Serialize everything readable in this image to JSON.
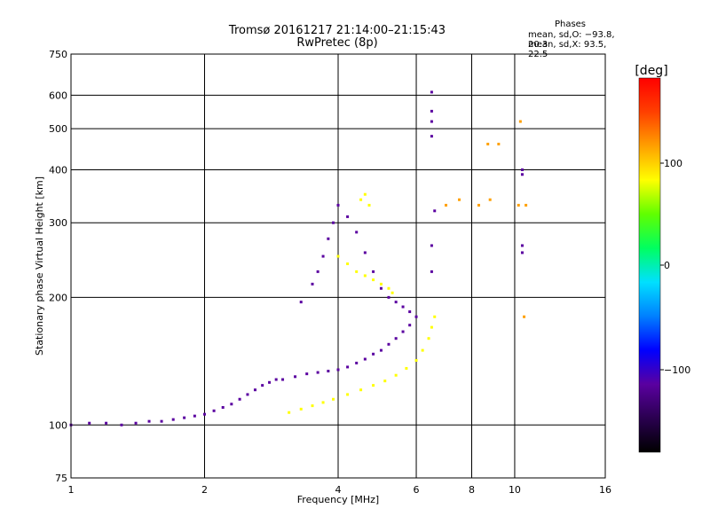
{
  "header": {
    "title": "Tromsø 20161217 21:14:00–21:15:43",
    "subtitle": "RwPretec (8p)",
    "stats_title": "Phases",
    "stats_o": "mean, sd,O: −93.8, 20.3",
    "stats_x": "mean, sd,X:  93.5, 22.5"
  },
  "colorbar": {
    "label": "[deg]",
    "ticks": [
      "100",
      "0",
      "−100"
    ],
    "min": -180,
    "max": 180,
    "colors": [
      "#000000",
      "#2a0050",
      "#5a00a0",
      "#0000ff",
      "#0080ff",
      "#00e0ff",
      "#00ff60",
      "#60ff00",
      "#ffff00",
      "#ffa000",
      "#ff4000",
      "#ff0000"
    ]
  },
  "chart_data": {
    "type": "scatter",
    "xlabel": "Frequency [MHz]",
    "ylabel": "Stationary phase Virtual Height [km]",
    "x_scale": "log",
    "y_scale": "log",
    "xlim": [
      1,
      16
    ],
    "ylim": [
      75,
      750
    ],
    "xticks": [
      1,
      2,
      4,
      6,
      8,
      10,
      16
    ],
    "xtick_labels": [
      "1",
      "2",
      "4",
      "6",
      "8",
      "10",
      "16"
    ],
    "yticks": [
      75,
      100,
      200,
      300,
      400,
      500,
      600,
      750
    ],
    "ytick_labels": [
      "75",
      "100",
      "200",
      "300",
      "400",
      "500",
      "600",
      "750"
    ],
    "grid": true,
    "color_quantity": "phase [deg]",
    "clusters": [
      {
        "trace": "low-band",
        "phase": -110,
        "points": [
          [
            1.0,
            100
          ],
          [
            1.1,
            101
          ],
          [
            1.2,
            101
          ],
          [
            1.3,
            100
          ],
          [
            1.4,
            101
          ],
          [
            1.5,
            102
          ],
          [
            1.6,
            102
          ],
          [
            1.7,
            103
          ],
          [
            1.8,
            104
          ],
          [
            1.9,
            105
          ],
          [
            2.0,
            106
          ],
          [
            2.1,
            108
          ],
          [
            2.2,
            110
          ],
          [
            2.3,
            112
          ],
          [
            2.4,
            115
          ],
          [
            2.5,
            118
          ],
          [
            2.6,
            121
          ],
          [
            2.7,
            124
          ],
          [
            2.8,
            126
          ],
          [
            2.9,
            128
          ]
        ]
      },
      {
        "trace": "e-layer-o",
        "phase": -100,
        "points": [
          [
            3.0,
            128
          ],
          [
            3.2,
            130
          ],
          [
            3.4,
            132
          ],
          [
            3.6,
            133
          ],
          [
            3.8,
            134
          ],
          [
            4.0,
            135
          ],
          [
            4.2,
            137
          ],
          [
            4.4,
            140
          ],
          [
            4.6,
            143
          ],
          [
            4.8,
            147
          ],
          [
            5.0,
            150
          ],
          [
            5.2,
            155
          ],
          [
            5.4,
            160
          ],
          [
            5.6,
            166
          ],
          [
            5.8,
            172
          ]
        ]
      },
      {
        "trace": "f-layer-o",
        "phase": -110,
        "points": [
          [
            3.3,
            195
          ],
          [
            3.5,
            215
          ],
          [
            3.6,
            230
          ],
          [
            3.7,
            250
          ],
          [
            3.8,
            275
          ],
          [
            3.9,
            300
          ],
          [
            4.0,
            330
          ],
          [
            4.2,
            310
          ],
          [
            4.4,
            285
          ],
          [
            4.6,
            255
          ],
          [
            4.8,
            230
          ],
          [
            5.0,
            210
          ],
          [
            5.2,
            200
          ],
          [
            5.4,
            195
          ],
          [
            5.6,
            190
          ],
          [
            5.8,
            185
          ],
          [
            6.0,
            180
          ]
        ]
      },
      {
        "trace": "x-trace",
        "phase": 90,
        "points": [
          [
            3.1,
            107
          ],
          [
            3.3,
            109
          ],
          [
            3.5,
            111
          ],
          [
            3.7,
            113
          ],
          [
            3.9,
            115
          ],
          [
            4.2,
            118
          ],
          [
            4.5,
            121
          ],
          [
            4.8,
            124
          ],
          [
            5.1,
            127
          ],
          [
            5.4,
            131
          ],
          [
            5.7,
            136
          ],
          [
            6.0,
            142
          ],
          [
            6.2,
            150
          ],
          [
            6.4,
            160
          ],
          [
            6.5,
            170
          ],
          [
            6.6,
            180
          ]
        ]
      },
      {
        "trace": "f-layer-x",
        "phase": 80,
        "points": [
          [
            4.0,
            250
          ],
          [
            4.2,
            240
          ],
          [
            4.4,
            230
          ],
          [
            4.6,
            225
          ],
          [
            4.8,
            220
          ],
          [
            5.0,
            215
          ],
          [
            5.2,
            210
          ],
          [
            5.3,
            205
          ],
          [
            4.5,
            340
          ],
          [
            4.6,
            350
          ],
          [
            4.7,
            330
          ]
        ]
      },
      {
        "trace": "high-echoes",
        "phase": -100,
        "points": [
          [
            6.5,
            610
          ],
          [
            6.5,
            550
          ],
          [
            6.5,
            520
          ],
          [
            6.5,
            480
          ],
          [
            6.6,
            320
          ],
          [
            6.5,
            265
          ],
          [
            6.5,
            230
          ],
          [
            10.4,
            400
          ],
          [
            10.4,
            390
          ],
          [
            10.4,
            265
          ],
          [
            10.4,
            255
          ]
        ]
      },
      {
        "trace": "high-echoes-x",
        "phase": 100,
        "points": [
          [
            7.0,
            330
          ],
          [
            7.5,
            340
          ],
          [
            8.3,
            330
          ],
          [
            8.8,
            340
          ],
          [
            8.7,
            460
          ],
          [
            9.2,
            460
          ],
          [
            10.2,
            330
          ],
          [
            10.6,
            330
          ],
          [
            10.5,
            180
          ],
          [
            10.3,
            520
          ]
        ]
      }
    ]
  }
}
